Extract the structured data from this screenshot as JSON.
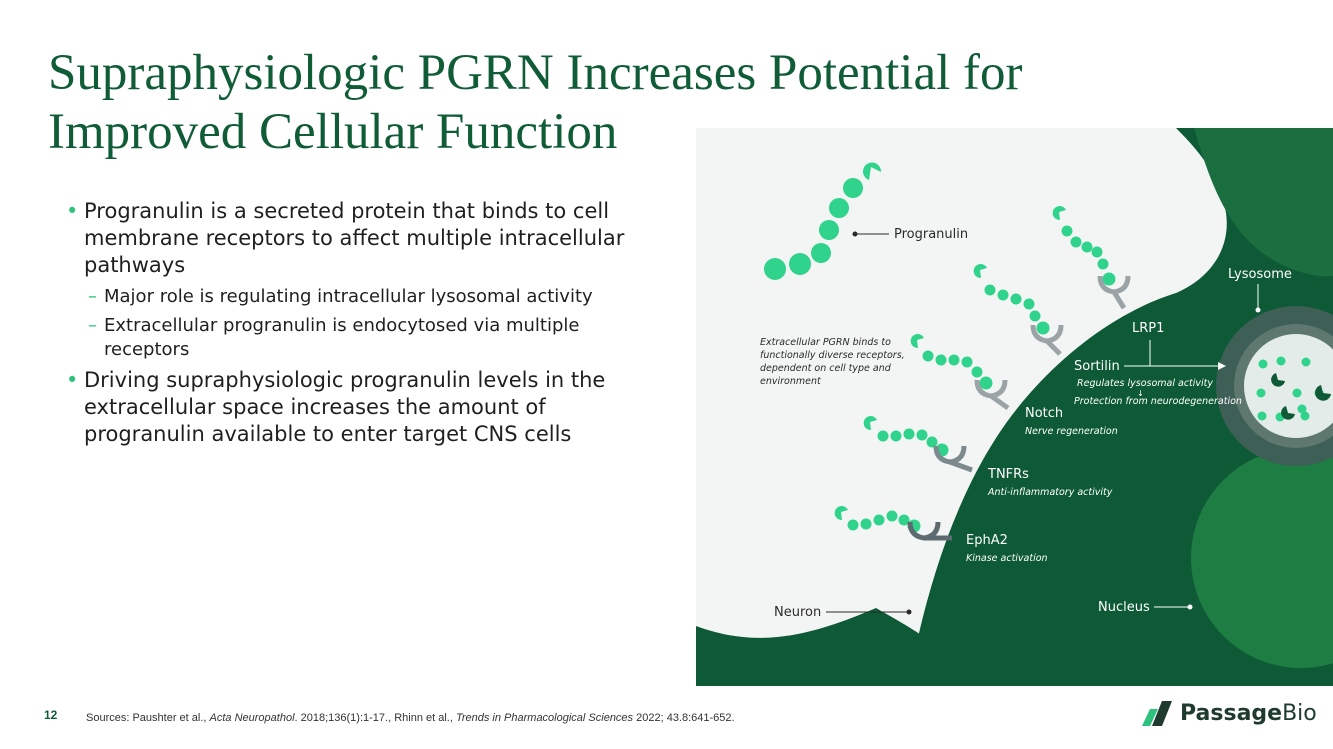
{
  "slide": {
    "title_line1": "Supraphysiologic PGRN Increases Potential for",
    "title_line2": "Improved Cellular Function",
    "page_number": "12"
  },
  "bullets": [
    {
      "text": "Progranulin is a secreted protein that binds to cell membrane receptors to affect multiple intracellular pathways",
      "subitems": [
        "Major role is regulating intracellular lysosomal activity",
        "Extracellular progranulin is endocytosed via multiple receptors"
      ]
    },
    {
      "text": "Driving supraphysiologic progranulin levels in the extracellular space increases the amount of progranulin available to enter target CNS cells",
      "subitems": []
    }
  ],
  "diagram": {
    "progranulin_label": "Progranulin",
    "lysosome_label": "Lysosome",
    "lrp1_label": "LRP1",
    "sortilin_label": "Sortilin",
    "sortilin_desc1": "Regulates lysosomal activity",
    "sortilin_desc2": "Protection from neurodegeneration",
    "notch_label": "Notch",
    "notch_desc": "Nerve regeneration",
    "tnfrs_label": "TNFRs",
    "tnfrs_desc": "Anti-inflammatory activity",
    "epha2_label": "EphA2",
    "epha2_desc": "Kinase activation",
    "neuron_label": "Neuron",
    "nucleus_label": "Nucleus",
    "note_line1": "Extracellular PGRN binds to",
    "note_line2": "functionally diverse receptors,",
    "note_line3": "dependent on cell type and",
    "note_line4": "environment",
    "colors": {
      "cell_dark": "#0e5a36",
      "cell_mid": "#1b6e3f",
      "nucleus": "#1e7d43",
      "granule": "#2fd38c",
      "background": "#f3f5f4"
    }
  },
  "footer": {
    "sources_prefix": "Sources: Paushter et al., ",
    "journal1": "Acta Neuropathol",
    "ref1": ". 2018;136(1):1-17., Rhinn et al., ",
    "journal2": "Trends in Pharmacological Sciences",
    "ref2": " 2022; 43.8:641-652.",
    "logo_bold": "Passage",
    "logo_regular": "Bio"
  }
}
